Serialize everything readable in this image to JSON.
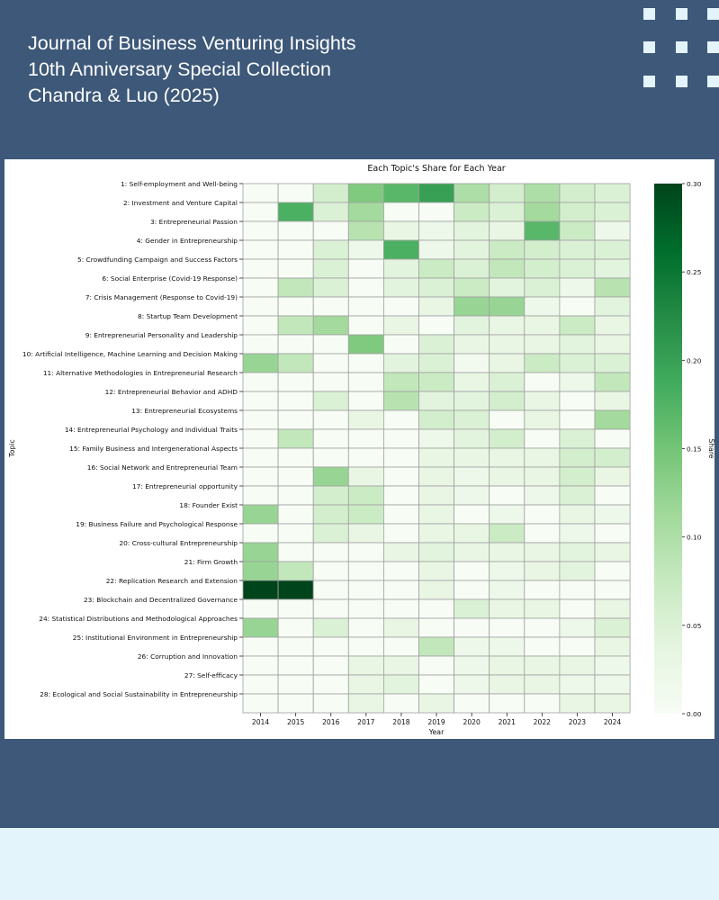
{
  "header": {
    "lines": [
      "Journal of Business Venturing Insights",
      "10th Anniversary Special Collection",
      "Chandra & Luo (2025)"
    ]
  },
  "colors": {
    "banner": "#3d5878",
    "footer": "#e3f4fb",
    "colormap": "Greens"
  },
  "chart_data": {
    "type": "heatmap",
    "title": "Each Topic's Share for Each Year",
    "xlabel": "Year",
    "ylabel": "Topic",
    "colorbar_label": "Share",
    "vmin": 0,
    "vmax": 0.3,
    "colorbar_ticks": [
      "0.00",
      "0.05",
      "0.10",
      "0.15",
      "0.20",
      "0.25",
      "0.30"
    ],
    "x": [
      "2014",
      "2015",
      "2016",
      "2017",
      "2018",
      "2019",
      "2020",
      "2021",
      "2022",
      "2023",
      "2024"
    ],
    "y": [
      "1: Self-employment and Well-being",
      "2: Investment and Venture Capital",
      "3: Entrepreneurial Passion",
      "4: Gender in Entrepreneurship",
      "5: Crowdfunding Campaign and Success Factors",
      "6: Social Enterprise (Covid-19 Response)",
      "7: Crisis Management (Response to Covid-19)",
      "8: Startup Team Development",
      "9: Entrepreneurial Personality and Leadership",
      "10: Artificial Intelligence, Machine Learning and Decision Making",
      "11: Alternative Methodologies in Entrepreneurial Research",
      "12: Entrepreneurial Behavior and ADHD",
      "13: Entrepreneurial Ecosystems",
      "14: Entrepreneurial Psychology and Individual Traits",
      "15: Family Business and Intergenerational Aspects",
      "16: Social Network and Entrepreneurial Team",
      "17: Entrepreneurial opportunity",
      "18: Founder Exist",
      "19: Business Failure and Psychological Response",
      "20: Cross-cultural Entrepreneurship",
      "21: Firm Growth",
      "22: Replication Research and Extension",
      "23: Blockchain and Decentralized Governance",
      "24: Statistical Distributions and Methodological Approaches",
      "25: Institutional Environment in Entrepreneurship",
      "26: Corruption and Innovation",
      "27: Self-efficacy",
      "28: Ecological and Social Sustainability in Entrepreneurship"
    ],
    "values": [
      [
        0,
        0,
        0.06,
        0.14,
        0.17,
        0.2,
        0.1,
        0.06,
        0.1,
        0.06,
        0.05
      ],
      [
        0,
        0.18,
        0.05,
        0.11,
        0,
        0,
        0.07,
        0.05,
        0.11,
        0.06,
        0.05
      ],
      [
        0,
        0,
        0,
        0.09,
        0.03,
        0.02,
        0.04,
        0.03,
        0.17,
        0.07,
        0.02
      ],
      [
        0,
        0,
        0.05,
        0.02,
        0.18,
        0.02,
        0.04,
        0.07,
        0.06,
        0.05,
        0.05
      ],
      [
        0,
        0,
        0.05,
        0,
        0.04,
        0.07,
        0.05,
        0.08,
        0.06,
        0.05,
        0.04
      ],
      [
        0,
        0.08,
        0.05,
        0,
        0.04,
        0.05,
        0.07,
        0.04,
        0.05,
        0.02,
        0.09
      ],
      [
        0,
        0,
        0,
        0,
        0,
        0.03,
        0.12,
        0.12,
        0.02,
        0,
        0.04
      ],
      [
        0,
        0.08,
        0.11,
        0,
        0.03,
        0,
        0.04,
        0.03,
        0.03,
        0.07,
        0.03
      ],
      [
        0,
        0,
        0,
        0.14,
        0,
        0.05,
        0.03,
        0.03,
        0.03,
        0.04,
        0.03
      ],
      [
        0.12,
        0.08,
        0,
        0,
        0.04,
        0.05,
        0.01,
        0.03,
        0.07,
        0.05,
        0.05
      ],
      [
        0,
        0,
        0,
        0,
        0.08,
        0.07,
        0.03,
        0.05,
        0,
        0.02,
        0.08
      ],
      [
        0,
        0,
        0.05,
        0,
        0.09,
        0.04,
        0.04,
        0.06,
        0.03,
        0,
        0.03
      ],
      [
        0,
        0,
        0,
        0.03,
        0,
        0.06,
        0.05,
        0,
        0.03,
        0,
        0.11
      ],
      [
        0,
        0.08,
        0,
        0,
        0,
        0.02,
        0.04,
        0.06,
        0,
        0.05,
        0
      ],
      [
        0,
        0,
        0,
        0,
        0,
        0.03,
        0.03,
        0.03,
        0.03,
        0.06,
        0.06
      ],
      [
        0,
        0,
        0.12,
        0.03,
        0,
        0.03,
        0.02,
        0.03,
        0.03,
        0.06,
        0.03
      ],
      [
        0,
        0,
        0.06,
        0.07,
        0,
        0.03,
        0.02,
        0,
        0.02,
        0.05,
        0
      ],
      [
        0.12,
        0,
        0.06,
        0.07,
        0,
        0.03,
        0,
        0.02,
        0,
        0.03,
        0.02
      ],
      [
        0,
        0,
        0.05,
        0.03,
        0,
        0.03,
        0.03,
        0.07,
        0,
        0.02,
        0
      ],
      [
        0.12,
        0,
        0,
        0,
        0.03,
        0.04,
        0.03,
        0.03,
        0.03,
        0.04,
        0.03
      ],
      [
        0.12,
        0.08,
        0,
        0,
        0,
        0.03,
        0,
        0.02,
        0.03,
        0.04,
        0
      ],
      [
        0.3,
        0.3,
        0,
        0,
        0,
        0.03,
        0,
        0.02,
        0,
        0,
        0
      ],
      [
        0,
        0,
        0,
        0,
        0,
        0,
        0.05,
        0.03,
        0.03,
        0,
        0.03
      ],
      [
        0.12,
        0,
        0.05,
        0,
        0.03,
        0,
        0,
        0,
        0,
        0.02,
        0.05
      ],
      [
        0,
        0,
        0,
        0,
        0,
        0.08,
        0.02,
        0.02,
        0,
        0,
        0.03
      ],
      [
        0,
        0,
        0,
        0.03,
        0.03,
        0,
        0.02,
        0.03,
        0.03,
        0.03,
        0.02
      ],
      [
        0,
        0,
        0,
        0.03,
        0.04,
        0,
        0.02,
        0.03,
        0.03,
        0.02,
        0.02
      ],
      [
        0,
        0,
        0,
        0.03,
        0,
        0.03,
        0,
        0,
        0,
        0.03,
        0.03
      ]
    ]
  }
}
